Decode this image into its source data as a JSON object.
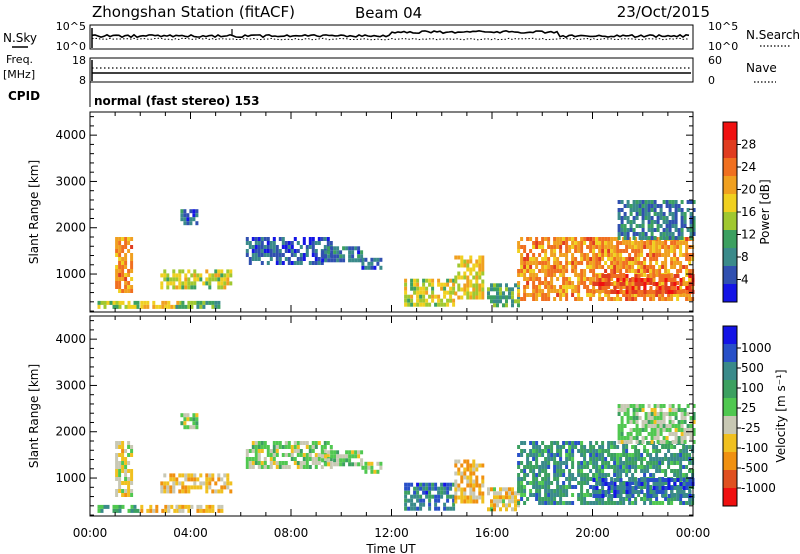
{
  "header": {
    "station": "Zhongshan Station (fitACF)",
    "beam": "Beam 04",
    "date": "23/Oct/2015"
  },
  "params": {
    "nsky_label": "N.Sky",
    "nsearch_label": "N.Search",
    "log_ticks_left": [
      "10^5",
      "10^0"
    ],
    "log_ticks_right": [
      "10^5",
      "10^0"
    ],
    "freq_label": "Freq.",
    "freq_unit": "[MHz]",
    "freq_ticks": [
      "18",
      "8"
    ],
    "nave_label": "Nave",
    "nave_ticks": [
      "60",
      "0"
    ],
    "cpid_label": "CPID",
    "cpid_text": "normal (fast stereo) 153"
  },
  "colors": {
    "power": [
      "#1414e6",
      "#3050b0",
      "#3a8a8a",
      "#3ca060",
      "#a0c830",
      "#f0d020",
      "#f0a020",
      "#f07020",
      "#e03c20",
      "#f01010"
    ],
    "velocity": [
      "#1414e6",
      "#2850c8",
      "#3a8a8a",
      "#3ca060",
      "#50c850",
      "#c8c8b4",
      "#f0c020",
      "#f09010",
      "#e05020",
      "#f01010"
    ]
  },
  "chart_data": [
    {
      "type": "heatmap",
      "quantity": "Power",
      "ylabel": "Slant Range [km]",
      "ylim": [
        180,
        4500
      ],
      "yticks": [
        "1000",
        "2000",
        "3000",
        "4000"
      ],
      "xlim": [
        0,
        24
      ],
      "colorbar": {
        "label": "Power [dB]",
        "range": [
          0,
          32
        ],
        "ticks": [
          "4",
          "8",
          "12",
          "16",
          "20",
          "24",
          "28"
        ]
      },
      "echo_regions": [
        {
          "t": [
            0.3,
            1.9
          ],
          "r": [
            300,
            420
          ],
          "value": 14
        },
        {
          "t": [
            1.0,
            1.6
          ],
          "r": [
            600,
            1800
          ],
          "value": 22
        },
        {
          "t": [
            2.0,
            3.6
          ],
          "r": [
            250,
            420
          ],
          "value": 18
        },
        {
          "t": [
            2.8,
            5.6
          ],
          "r": [
            750,
            1100
          ],
          "value": 16
        },
        {
          "t": [
            3.4,
            5.2
          ],
          "r": [
            270,
            420
          ],
          "value": 12
        },
        {
          "t": [
            3.6,
            4.2
          ],
          "r": [
            2100,
            2400
          ],
          "value": 6
        },
        {
          "t": [
            6.2,
            9.6
          ],
          "r": [
            1200,
            1800
          ],
          "value": 5
        },
        {
          "t": [
            9.2,
            10.8
          ],
          "r": [
            1300,
            1600
          ],
          "value": 7
        },
        {
          "t": [
            10.8,
            11.6
          ],
          "r": [
            1150,
            1350
          ],
          "value": 6
        },
        {
          "t": [
            12.5,
            14.5
          ],
          "r": [
            300,
            900
          ],
          "value": 16
        },
        {
          "t": [
            14.5,
            15.6
          ],
          "r": [
            500,
            1400
          ],
          "value": 18
        },
        {
          "t": [
            15.8,
            17.0
          ],
          "r": [
            300,
            800
          ],
          "value": 10
        },
        {
          "t": [
            17.0,
            24.0
          ],
          "r": [
            500,
            1800
          ],
          "value": 22
        },
        {
          "t": [
            20.0,
            24.0
          ],
          "r": [
            600,
            1000
          ],
          "value": 26
        },
        {
          "t": [
            21.0,
            24.0
          ],
          "r": [
            1800,
            2600
          ],
          "value": 8
        }
      ]
    },
    {
      "type": "heatmap",
      "quantity": "Velocity",
      "ylabel": "Slant Range [km]",
      "ylim": [
        180,
        4500
      ],
      "yticks": [
        "1000",
        "2000",
        "3000",
        "4000"
      ],
      "xlim": [
        0,
        24
      ],
      "xticks": [
        "00:00",
        "04:00",
        "08:00",
        "12:00",
        "16:00",
        "20:00",
        "00:00"
      ],
      "xlabel": "Time UT",
      "colorbar": {
        "label": "Velocity [m s⁻¹]",
        "range": [
          -1250,
          1250
        ],
        "ticks": [
          "1000",
          "500",
          "100",
          "25",
          "-25",
          "-100",
          "-500",
          "-1000"
        ]
      },
      "echo_regions": [
        {
          "t": [
            0.3,
            1.9
          ],
          "r": [
            300,
            420
          ],
          "value": 300
        },
        {
          "t": [
            1.0,
            1.6
          ],
          "r": [
            600,
            1800
          ],
          "value": -200
        },
        {
          "t": [
            2.0,
            3.6
          ],
          "r": [
            250,
            420
          ],
          "value": -400
        },
        {
          "t": [
            2.8,
            5.6
          ],
          "r": [
            750,
            1100
          ],
          "value": -400
        },
        {
          "t": [
            3.4,
            5.2
          ],
          "r": [
            270,
            420
          ],
          "value": -300
        },
        {
          "t": [
            3.6,
            4.2
          ],
          "r": [
            2100,
            2400
          ],
          "value": 0
        },
        {
          "t": [
            6.2,
            9.6
          ],
          "r": [
            1200,
            1800
          ],
          "value": 0
        },
        {
          "t": [
            9.2,
            10.8
          ],
          "r": [
            1300,
            1600
          ],
          "value": 0
        },
        {
          "t": [
            10.8,
            11.6
          ],
          "r": [
            1150,
            1350
          ],
          "value": -50
        },
        {
          "t": [
            12.5,
            14.5
          ],
          "r": [
            300,
            900
          ],
          "value": 700
        },
        {
          "t": [
            14.5,
            15.6
          ],
          "r": [
            500,
            1400
          ],
          "value": -400
        },
        {
          "t": [
            15.8,
            17.0
          ],
          "r": [
            300,
            800
          ],
          "value": -300
        },
        {
          "t": [
            17.0,
            24.0
          ],
          "r": [
            500,
            1800
          ],
          "value": 500
        },
        {
          "t": [
            20.0,
            24.0
          ],
          "r": [
            600,
            1000
          ],
          "value": 800
        },
        {
          "t": [
            21.0,
            24.0
          ],
          "r": [
            1800,
            2600
          ],
          "value": 0
        }
      ]
    }
  ]
}
